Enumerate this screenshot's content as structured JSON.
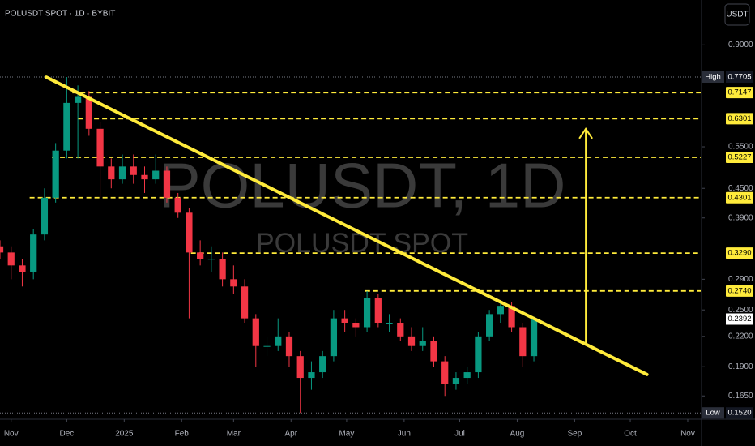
{
  "header": "POLUSDT SPOT · 1D · BYBIT",
  "currency_button": "USDT",
  "chart_data": {
    "type": "candlestick",
    "watermark": "POLUSDT, 1D",
    "watermark_subtitle": "POLUSDT SPOT",
    "candles": {
      "x": [
        -6,
        0,
        6,
        12,
        18,
        24,
        30,
        36,
        42,
        48,
        54,
        60,
        66,
        72,
        78,
        84,
        90,
        96,
        102,
        108,
        114,
        120,
        126,
        132,
        138,
        144,
        150,
        156,
        162,
        168,
        174,
        180,
        186,
        192,
        198,
        204,
        210,
        216,
        222,
        228,
        234,
        240,
        246,
        252,
        258,
        264,
        270,
        276,
        282
      ],
      "open": [
        0.34,
        0.33,
        0.31,
        0.3,
        0.36,
        0.43,
        0.54,
        0.68,
        0.7,
        0.6,
        0.5,
        0.47,
        0.5,
        0.48,
        0.47,
        0.49,
        0.43,
        0.4,
        0.33,
        0.32,
        0.32,
        0.29,
        0.28,
        0.24,
        0.21,
        0.21,
        0.22,
        0.2,
        0.18,
        0.185,
        0.2,
        0.24,
        0.235,
        0.23,
        0.265,
        0.235,
        0.235,
        0.22,
        0.21,
        0.215,
        0.195,
        0.175,
        0.18,
        0.185,
        0.22,
        0.245,
        0.255,
        0.23,
        0.2
      ],
      "high": [
        0.35,
        0.34,
        0.32,
        0.37,
        0.45,
        0.56,
        0.7705,
        0.74,
        0.72,
        0.62,
        0.52,
        0.53,
        0.53,
        0.5,
        0.53,
        0.5,
        0.44,
        0.41,
        0.35,
        0.34,
        0.33,
        0.31,
        0.29,
        0.245,
        0.22,
        0.24,
        0.225,
        0.205,
        0.195,
        0.205,
        0.25,
        0.25,
        0.24,
        0.274,
        0.27,
        0.245,
        0.24,
        0.23,
        0.23,
        0.22,
        0.2,
        0.185,
        0.19,
        0.225,
        0.25,
        0.262,
        0.26,
        0.235,
        0.242
      ],
      "low": [
        0.32,
        0.29,
        0.28,
        0.29,
        0.35,
        0.42,
        0.52,
        0.52,
        0.58,
        0.43,
        0.45,
        0.46,
        0.46,
        0.44,
        0.46,
        0.42,
        0.39,
        0.24,
        0.31,
        0.3,
        0.28,
        0.27,
        0.235,
        0.19,
        0.2,
        0.205,
        0.19,
        0.152,
        0.17,
        0.18,
        0.195,
        0.225,
        0.22,
        0.225,
        0.23,
        0.225,
        0.215,
        0.205,
        0.205,
        0.19,
        0.165,
        0.17,
        0.175,
        0.18,
        0.215,
        0.235,
        0.225,
        0.19,
        0.195
      ],
      "close": [
        0.33,
        0.31,
        0.3,
        0.36,
        0.43,
        0.54,
        0.68,
        0.7,
        0.6,
        0.5,
        0.47,
        0.5,
        0.48,
        0.47,
        0.49,
        0.43,
        0.4,
        0.33,
        0.32,
        0.32,
        0.29,
        0.28,
        0.24,
        0.21,
        0.21,
        0.22,
        0.2,
        0.18,
        0.185,
        0.2,
        0.24,
        0.235,
        0.23,
        0.265,
        0.235,
        0.235,
        0.22,
        0.21,
        0.215,
        0.195,
        0.175,
        0.18,
        0.185,
        0.22,
        0.245,
        0.255,
        0.23,
        0.2,
        0.2392
      ]
    },
    "up_color": "#089981",
    "down_color": "#f23645",
    "xlim": [
      -6,
      372
    ],
    "xticks": [
      {
        "value": 0,
        "label": "Nov"
      },
      {
        "value": 30,
        "label": "Dec"
      },
      {
        "value": 61,
        "label": "2025"
      },
      {
        "value": 92,
        "label": "Feb"
      },
      {
        "value": 120,
        "label": "Mar"
      },
      {
        "value": 151,
        "label": "Apr"
      },
      {
        "value": 181,
        "label": "May"
      },
      {
        "value": 212,
        "label": "Jun"
      },
      {
        "value": 242,
        "label": "Jul"
      },
      {
        "value": 273,
        "label": "Aug"
      },
      {
        "value": 304,
        "label": "Sep"
      },
      {
        "value": 334,
        "label": "Oct"
      },
      {
        "value": 365,
        "label": "Nov"
      }
    ],
    "ylim": [
      0.148,
      1.118
    ],
    "log_scale": true,
    "yticks": [
      {
        "value": 0.9,
        "label": "0.9000"
      },
      {
        "value": 0.55,
        "label": "0.5500"
      },
      {
        "value": 0.45,
        "label": "0.4500"
      },
      {
        "value": 0.39,
        "label": "0.3900"
      },
      {
        "value": 0.29,
        "label": "0.2900"
      },
      {
        "value": 0.25,
        "label": "0.2500"
      },
      {
        "value": 0.22,
        "label": "0.2200"
      },
      {
        "value": 0.19,
        "label": "0.1900"
      },
      {
        "value": 0.165,
        "label": "0.1650"
      }
    ],
    "levels": {
      "values": [
        0.7147,
        0.6301,
        0.5227,
        0.4301,
        0.329,
        0.274
      ],
      "value_labels": [
        "0.7147",
        "0.6301",
        "0.5227",
        "0.4301",
        "0.3290",
        "0.2740"
      ],
      "x_start": [
        33,
        36,
        22,
        10,
        97,
        191
      ],
      "color": "#ffeb3b"
    },
    "high_marker": {
      "label": "High",
      "value": 0.7705,
      "value_label": "0.7705"
    },
    "low_marker": {
      "label": "Low",
      "value": 0.152,
      "value_label": "0.1520"
    },
    "last_price": 0.2392,
    "trendline": {
      "x": [
        19,
        343
      ],
      "y": [
        0.77,
        0.183
      ],
      "color": "#ffeb3b"
    },
    "arrow": {
      "x": 310,
      "y": [
        0.213,
        0.6
      ],
      "color": "#ffeb3b"
    }
  }
}
